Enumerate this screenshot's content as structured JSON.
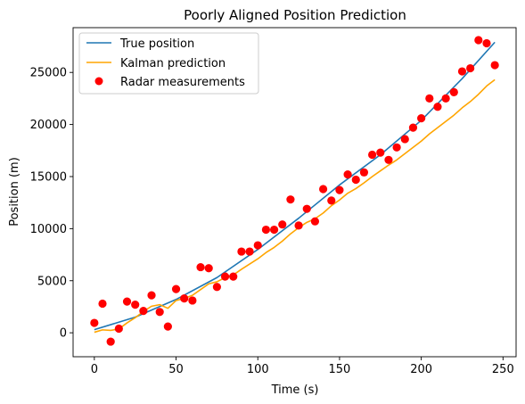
{
  "chart_data": {
    "type": "line",
    "title": "Poorly Aligned Position Prediction",
    "xlabel": "Time (s)",
    "ylabel": "Position (m)",
    "xlim": [
      -13,
      258
    ],
    "ylim": [
      -2300,
      29300
    ],
    "xticks": [
      0,
      50,
      100,
      150,
      200,
      250
    ],
    "yticks": [
      0,
      5000,
      10000,
      15000,
      20000,
      25000
    ],
    "grid": false,
    "legend_position": "top-left",
    "series": [
      {
        "name": "True position",
        "kind": "line",
        "color": "#1f77b4",
        "x": [
          0,
          25,
          50,
          75,
          100,
          125,
          150,
          175,
          200,
          225,
          245
        ],
        "y": [
          300,
          1500,
          3200,
          5300,
          8000,
          11000,
          14200,
          17100,
          20400,
          24400,
          27900
        ]
      },
      {
        "name": "Kalman prediction",
        "kind": "line",
        "color": "#ffa500",
        "x": [
          0,
          5,
          10,
          15,
          20,
          25,
          30,
          35,
          40,
          45,
          50,
          55,
          60,
          65,
          70,
          75,
          80,
          85,
          90,
          95,
          100,
          105,
          110,
          115,
          120,
          125,
          130,
          135,
          140,
          145,
          150,
          155,
          160,
          165,
          170,
          175,
          180,
          185,
          190,
          195,
          200,
          205,
          210,
          215,
          220,
          225,
          230,
          235,
          240,
          245
        ],
        "y": [
          50,
          280,
          230,
          370,
          950,
          1450,
          2050,
          2550,
          2700,
          2350,
          3100,
          3300,
          3600,
          4150,
          4700,
          4900,
          5300,
          5550,
          6100,
          6600,
          7100,
          7700,
          8200,
          8800,
          9500,
          10100,
          10600,
          10950,
          11500,
          12200,
          12750,
          13400,
          13850,
          14400,
          15000,
          15550,
          16100,
          16600,
          17200,
          17800,
          18400,
          19100,
          19700,
          20300,
          20900,
          21600,
          22200,
          22900,
          23700,
          24300
        ]
      },
      {
        "name": "Radar measurements",
        "kind": "scatter",
        "color": "#ff0000",
        "x": [
          0,
          5,
          10,
          15,
          20,
          25,
          30,
          35,
          40,
          45,
          50,
          55,
          60,
          65,
          70,
          75,
          80,
          85,
          90,
          95,
          100,
          105,
          110,
          115,
          120,
          125,
          130,
          135,
          140,
          145,
          150,
          155,
          160,
          165,
          170,
          175,
          180,
          185,
          190,
          195,
          200,
          205,
          210,
          215,
          220,
          225,
          230,
          235,
          240,
          245
        ],
        "y": [
          950,
          2800,
          -850,
          400,
          3000,
          2700,
          2100,
          3600,
          2000,
          600,
          4200,
          3300,
          3100,
          6300,
          6200,
          4400,
          5400,
          5400,
          7800,
          7800,
          8400,
          9900,
          9900,
          10400,
          12800,
          10300,
          11900,
          10700,
          13800,
          12700,
          13700,
          15200,
          14700,
          15400,
          17100,
          17300,
          16600,
          17800,
          18600,
          19700,
          20600,
          22500,
          21700,
          22500,
          23100,
          25100,
          25400,
          28100,
          27800,
          25700
        ]
      }
    ]
  }
}
